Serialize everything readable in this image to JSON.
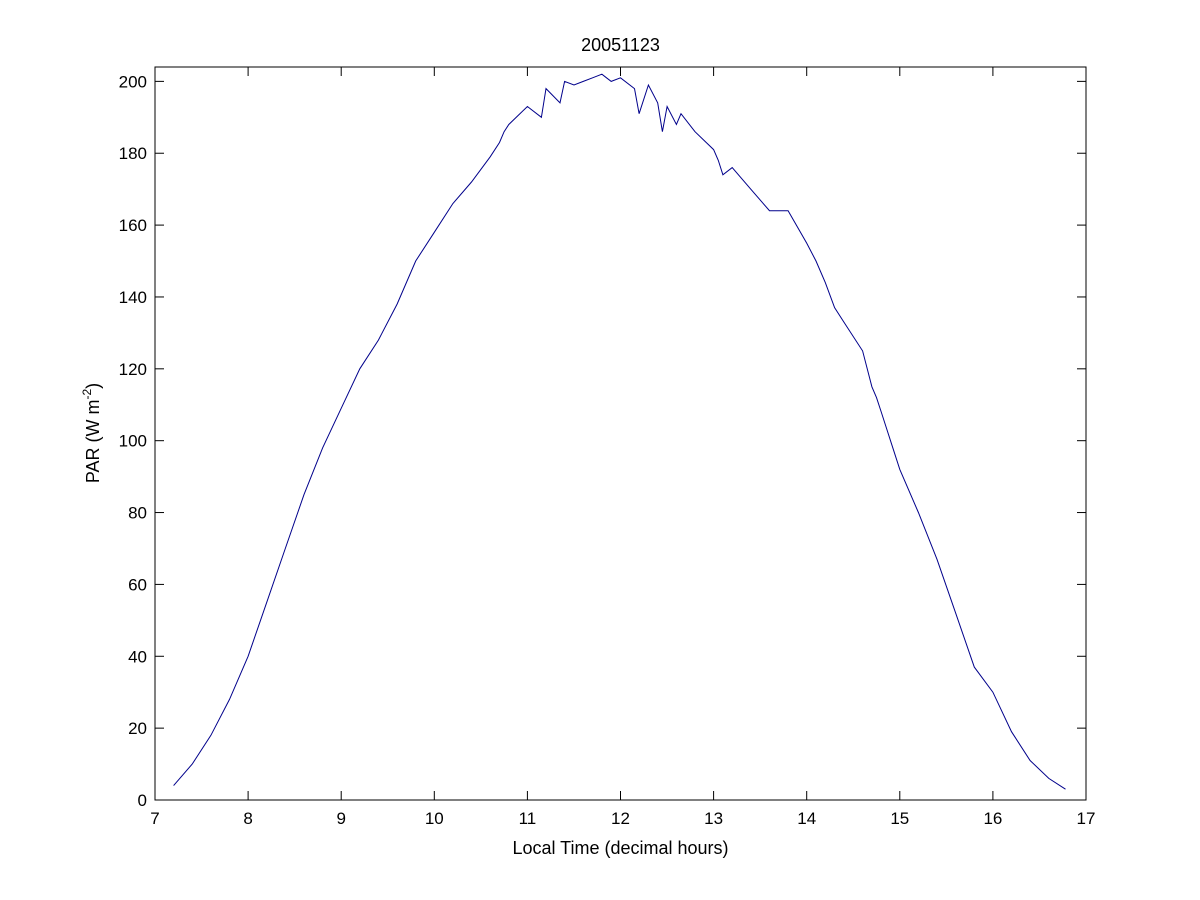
{
  "chart_data": {
    "type": "line",
    "title": "20051123",
    "xlabel": "Local Time (decimal hours)",
    "ylabel": "PAR (W m",
    "ylabel_sup": "-2",
    "ylabel_suffix": ")",
    "xlim": [
      7,
      17
    ],
    "ylim": [
      0,
      204
    ],
    "xticks": [
      7,
      8,
      9,
      10,
      11,
      12,
      13,
      14,
      15,
      16,
      17
    ],
    "yticks": [
      0,
      20,
      40,
      60,
      80,
      100,
      120,
      140,
      160,
      180,
      200
    ],
    "grid": false,
    "line_color": "#00008b",
    "series": [
      {
        "x": [
          7.2,
          7.4,
          7.6,
          7.8,
          8.0,
          8.2,
          8.4,
          8.6,
          8.8,
          9.0,
          9.2,
          9.4,
          9.6,
          9.8,
          10.0,
          10.2,
          10.4,
          10.6,
          10.7,
          10.75,
          10.8,
          11.0,
          11.15,
          11.2,
          11.35,
          11.4,
          11.5,
          11.6,
          11.7,
          11.8,
          11.85,
          11.9,
          12.0,
          12.15,
          12.2,
          12.3,
          12.4,
          12.45,
          12.5,
          12.6,
          12.65,
          12.8,
          13.0,
          13.05,
          13.1,
          13.2,
          13.4,
          13.6,
          13.8,
          14.0,
          14.1,
          14.2,
          14.3,
          14.4,
          14.6,
          14.7,
          14.75,
          14.8,
          14.9,
          15.0,
          15.2,
          15.4,
          15.6,
          15.8,
          16.0,
          16.2,
          16.4,
          16.6,
          16.78
        ],
        "y": [
          4,
          10,
          18,
          28,
          40,
          55,
          70,
          85,
          98,
          109,
          120,
          128,
          138,
          150,
          158,
          166,
          172,
          179,
          183,
          186,
          188,
          193,
          190,
          198,
          194,
          200,
          199,
          200,
          201,
          202,
          201,
          200,
          201,
          198,
          191,
          199,
          194,
          186,
          193,
          188,
          191,
          186,
          181,
          178,
          174,
          176,
          170,
          164,
          164,
          155,
          150,
          144,
          137,
          133,
          125,
          115,
          112,
          108,
          100,
          92,
          80,
          67,
          52,
          37,
          30,
          19,
          11,
          6,
          3
        ]
      }
    ]
  }
}
